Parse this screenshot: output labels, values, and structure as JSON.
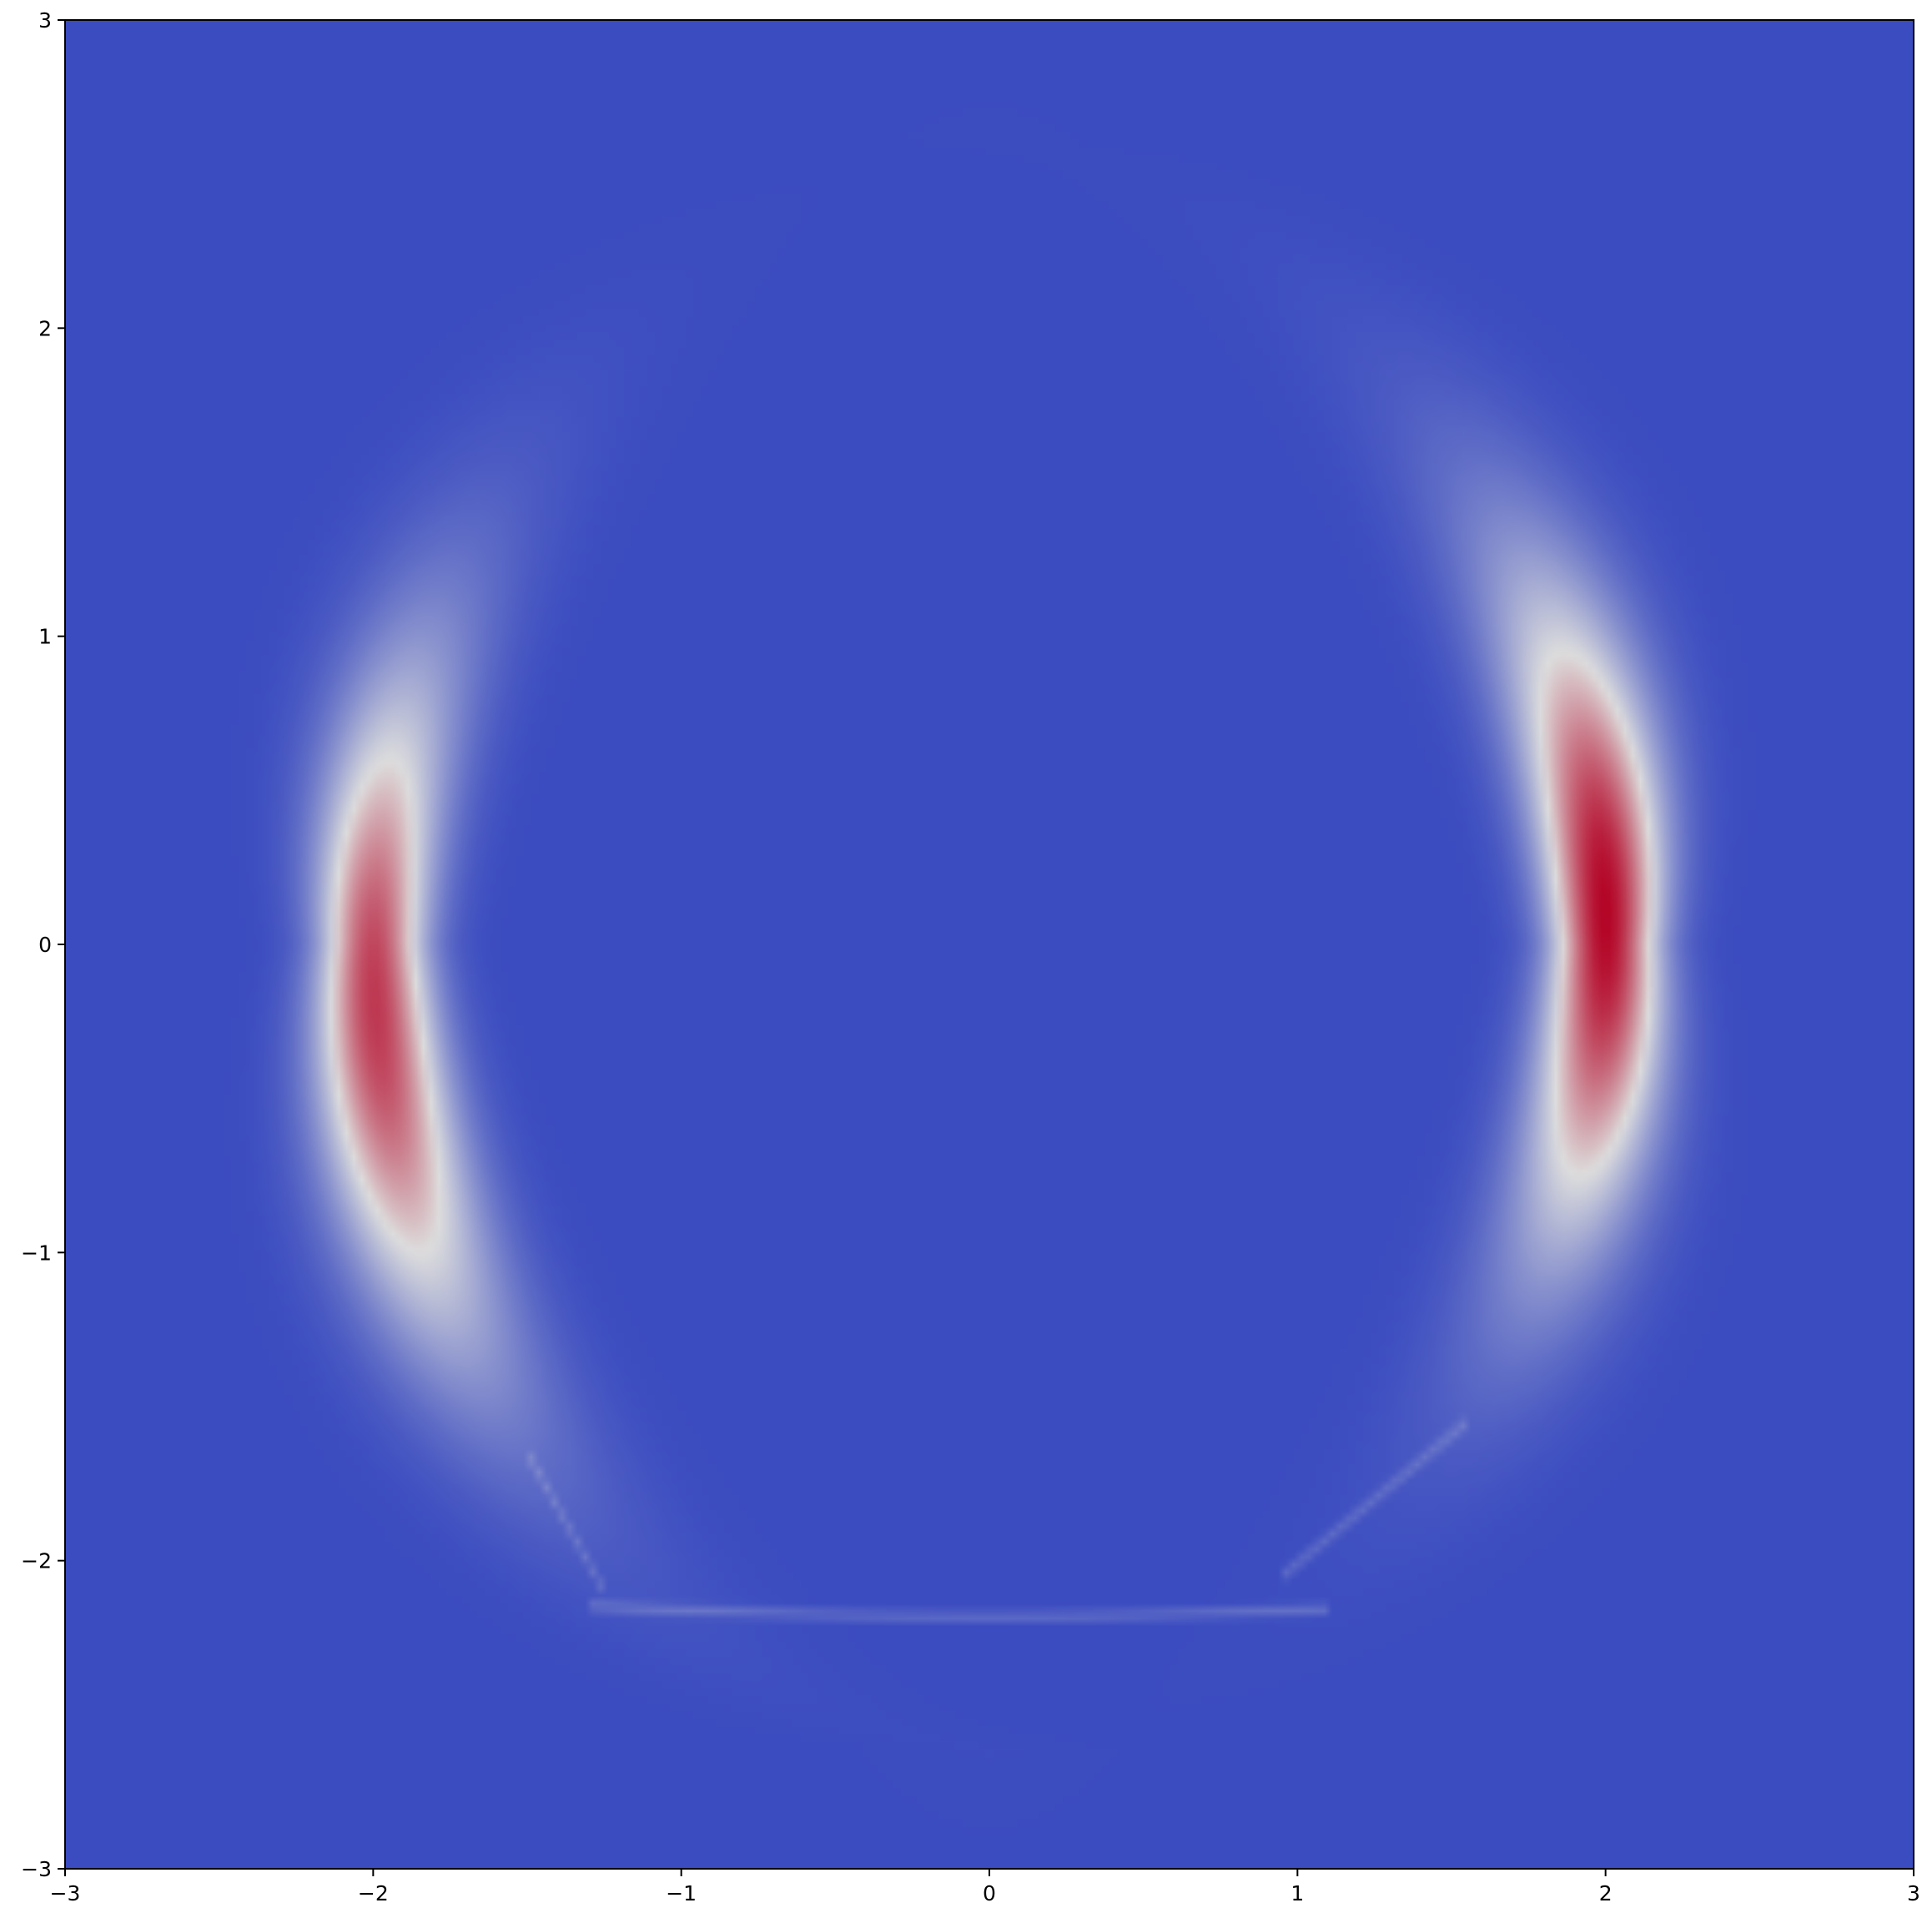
{
  "chart_data": {
    "type": "heatmap",
    "title": "",
    "xlabel": "",
    "ylabel": "",
    "xlim": [
      -3,
      3
    ],
    "ylim": [
      -3,
      3
    ],
    "grid": false,
    "colormap": "coolwarm",
    "colors": {
      "low": "#3b4cc0",
      "mid": "#dddddd",
      "high": "#b40426"
    },
    "x_ticks": [
      -3,
      -2,
      -1,
      0,
      1,
      2,
      3
    ],
    "y_ticks": [
      -3,
      -2,
      -1,
      0,
      1,
      2,
      3
    ],
    "x_tick_labels": [
      "−3",
      "−2",
      "−1",
      "0",
      "1",
      "2",
      "3"
    ],
    "y_tick_labels": [
      "−3",
      "−2",
      "−1",
      "0",
      "1",
      "2",
      "3"
    ],
    "bands": [
      {
        "name": "left crescent",
        "peak_x": -1.97,
        "peak_y": -0.2,
        "peak_value": 0.88,
        "y_range": [
          -1.5,
          2.0
        ]
      },
      {
        "name": "right crescent",
        "peak_x": 1.97,
        "peak_y": 0.15,
        "peak_value": 1.0,
        "y_range": [
          -1.6,
          1.9
        ]
      },
      {
        "name": "bottom trace",
        "y": -2.18,
        "x_range": [
          -1.3,
          1.1
        ],
        "peak_value": 0.12
      }
    ]
  }
}
